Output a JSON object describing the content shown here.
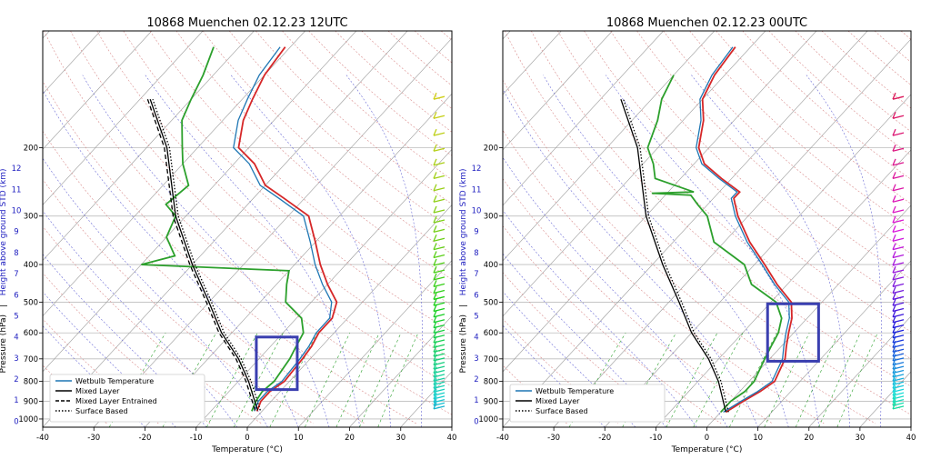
{
  "chart_data": [
    {
      "type": "line",
      "title": "10868 Muenchen 02.12.23 12UTC",
      "xlabel": "Temperature (°C)",
      "ylabel": "Pressure (hPa)",
      "ylabel2": "Height above ground STD (km)",
      "ylabel_sep": "|",
      "x_ticks": [
        -40,
        -30,
        -20,
        -10,
        0,
        10,
        20,
        30,
        40
      ],
      "p_ticks": [
        200,
        300,
        400,
        500,
        600,
        700,
        800,
        900,
        1000
      ],
      "km_ticks": [
        0,
        1,
        2,
        3,
        4,
        5,
        6,
        7,
        8,
        9,
        10,
        11,
        12
      ],
      "xlim": [
        -40,
        40
      ],
      "ylim": [
        1050,
        100
      ],
      "skew": true,
      "legend": [
        "Wetbulb Temperature",
        "Mixed Layer",
        "Mixed Layer Entrained",
        "Surface Based"
      ],
      "legend_position": "bottom-left",
      "highlight_box": {
        "t_min": -5,
        "t_max": 3,
        "p_top": 615,
        "p_bottom": 840
      },
      "series": [
        {
          "name": "Temperature",
          "color": "#d62728",
          "points": [
            [
              -1,
              955
            ],
            [
              -2,
              900
            ],
            [
              -2,
              850
            ],
            [
              -1,
              800
            ],
            [
              -1.5,
              700
            ],
            [
              -2,
              650
            ],
            [
              -3,
              600
            ],
            [
              -3,
              550
            ],
            [
              -5,
              500
            ],
            [
              -10,
              450
            ],
            [
              -15,
              400
            ],
            [
              -20,
              350
            ],
            [
              -26,
              300
            ],
            [
              -34,
              270
            ],
            [
              -40,
              250
            ],
            [
              -46,
              220
            ],
            [
              -52,
              200
            ],
            [
              -56,
              170
            ],
            [
              -58,
              150
            ],
            [
              -60,
              130
            ],
            [
              -61,
              110
            ]
          ]
        },
        {
          "name": "Wetbulb Temperature",
          "color": "#1f77b4",
          "points": [
            [
              -1.5,
              955
            ],
            [
              -2.5,
              900
            ],
            [
              -2.5,
              850
            ],
            [
              -1.5,
              800
            ],
            [
              -2,
              700
            ],
            [
              -2.5,
              650
            ],
            [
              -3.5,
              600
            ],
            [
              -3.5,
              550
            ],
            [
              -6,
              500
            ],
            [
              -11,
              450
            ],
            [
              -16,
              400
            ],
            [
              -21,
              350
            ],
            [
              -27,
              300
            ],
            [
              -35,
              270
            ],
            [
              -41,
              250
            ],
            [
              -47,
              220
            ],
            [
              -53,
              200
            ],
            [
              -57,
              170
            ],
            [
              -59,
              150
            ],
            [
              -61,
              130
            ],
            [
              -62,
              110
            ]
          ]
        },
        {
          "name": "Dewpoint",
          "color": "#2ca02c",
          "points": [
            [
              -2,
              955
            ],
            [
              -3,
              900
            ],
            [
              -3.5,
              850
            ],
            [
              -3,
              800
            ],
            [
              -4,
              700
            ],
            [
              -5,
              650
            ],
            [
              -6,
              600
            ],
            [
              -9,
              550
            ],
            [
              -15,
              500
            ],
            [
              -18,
              450
            ],
            [
              -20,
              415
            ],
            [
              -50,
              400
            ],
            [
              -45,
              380
            ],
            [
              -50,
              340
            ],
            [
              -52,
              300
            ],
            [
              -56,
              280
            ],
            [
              -55,
              250
            ],
            [
              -60,
              220
            ],
            [
              -63,
              200
            ],
            [
              -68,
              170
            ],
            [
              -70,
              150
            ],
            [
              -72,
              130
            ],
            [
              -75,
              110
            ]
          ]
        },
        {
          "name": "Mixed Layer",
          "color": "#000000",
          "style": "solid",
          "points": [
            [
              -1,
              950
            ],
            [
              -8,
              800
            ],
            [
              -14,
              700
            ],
            [
              -22,
              600
            ],
            [
              -30,
              500
            ],
            [
              -40,
              400
            ],
            [
              -52,
              300
            ],
            [
              -66,
              200
            ],
            [
              -78,
              150
            ]
          ]
        },
        {
          "name": "Mixed Layer Entrained",
          "color": "#000000",
          "style": "dashed",
          "points": [
            [
              -1.5,
              950
            ],
            [
              -8.5,
              800
            ],
            [
              -14.5,
              700
            ],
            [
              -22.5,
              600
            ],
            [
              -30.5,
              500
            ],
            [
              -40.5,
              400
            ],
            [
              -52.5,
              300
            ],
            [
              -66.5,
              200
            ],
            [
              -78.5,
              150
            ]
          ]
        },
        {
          "name": "Surface Based",
          "color": "#000000",
          "style": "dotted",
          "points": [
            [
              -0.5,
              950
            ],
            [
              -7.5,
              800
            ],
            [
              -13.5,
              700
            ],
            [
              -21.5,
              600
            ],
            [
              -29.5,
              500
            ],
            [
              -39.5,
              400
            ],
            [
              -51.5,
              300
            ],
            [
              -65.5,
              200
            ],
            [
              -77.5,
              150
            ]
          ]
        }
      ]
    },
    {
      "type": "line",
      "title": "10868 Muenchen 02.12.23 00UTC",
      "xlabel": "Temperature (°C)",
      "ylabel": "Pressure (hPa)",
      "ylabel2": "Height above ground STD (km)",
      "ylabel_sep": "|",
      "x_ticks": [
        -40,
        -30,
        -20,
        -10,
        0,
        10,
        20,
        30,
        40
      ],
      "p_ticks": [
        200,
        300,
        400,
        500,
        600,
        700,
        800,
        900,
        1000
      ],
      "km_ticks": [
        0,
        1,
        2,
        3,
        4,
        5,
        6,
        7,
        8,
        9,
        10,
        11,
        12
      ],
      "xlim": [
        -40,
        40
      ],
      "ylim": [
        1050,
        100
      ],
      "skew": true,
      "legend": [
        "Wetbulb Temperature",
        "Mixed Layer",
        "Surface Based"
      ],
      "legend_position": "bottom-left",
      "highlight_box": {
        "t_min": 0,
        "t_max": 10,
        "p_top": 505,
        "p_bottom": 710
      },
      "series": [
        {
          "name": "Temperature",
          "color": "#d62728",
          "points": [
            [
              1,
              960
            ],
            [
              2.5,
              900
            ],
            [
              4,
              850
            ],
            [
              5,
              800
            ],
            [
              3,
              700
            ],
            [
              1,
              650
            ],
            [
              -1,
              600
            ],
            [
              -3,
              550
            ],
            [
              -6,
              500
            ],
            [
              -12,
              450
            ],
            [
              -18,
              400
            ],
            [
              -25,
              350
            ],
            [
              -32,
              300
            ],
            [
              -36,
              270
            ],
            [
              -36,
              260
            ],
            [
              -42,
              240
            ],
            [
              -48,
              220
            ],
            [
              -52,
              200
            ],
            [
              -56,
              170
            ],
            [
              -60,
              150
            ],
            [
              -62,
              130
            ],
            [
              -63,
              110
            ]
          ]
        },
        {
          "name": "Wetbulb Temperature",
          "color": "#1f77b4",
          "points": [
            [
              0.5,
              960
            ],
            [
              2,
              900
            ],
            [
              3.5,
              850
            ],
            [
              4.5,
              800
            ],
            [
              2.5,
              700
            ],
            [
              0.5,
              650
            ],
            [
              -1.5,
              600
            ],
            [
              -3.5,
              550
            ],
            [
              -6.5,
              500
            ],
            [
              -12.5,
              450
            ],
            [
              -18.5,
              400
            ],
            [
              -25.5,
              350
            ],
            [
              -32.5,
              300
            ],
            [
              -36.5,
              270
            ],
            [
              -36.5,
              260
            ],
            [
              -42.5,
              240
            ],
            [
              -48.5,
              220
            ],
            [
              -52.5,
              200
            ],
            [
              -56.5,
              170
            ],
            [
              -60.5,
              150
            ],
            [
              -62.5,
              130
            ],
            [
              -63.5,
              110
            ]
          ]
        },
        {
          "name": "Dewpoint",
          "color": "#2ca02c",
          "points": [
            [
              0,
              960
            ],
            [
              0,
              900
            ],
            [
              1,
              850
            ],
            [
              1,
              800
            ],
            [
              -1,
              700
            ],
            [
              -2,
              650
            ],
            [
              -3,
              600
            ],
            [
              -5,
              550
            ],
            [
              -9,
              500
            ],
            [
              -17,
              450
            ],
            [
              -22,
              400
            ],
            [
              -32,
              350
            ],
            [
              -38,
              300
            ],
            [
              -42,
              280
            ],
            [
              -45,
              265
            ],
            [
              -53,
              262
            ],
            [
              -45,
              260
            ],
            [
              -55,
              240
            ],
            [
              -58,
              220
            ],
            [
              -62,
              200
            ],
            [
              -65,
              170
            ],
            [
              -68,
              150
            ],
            [
              -70,
              130
            ]
          ]
        },
        {
          "name": "Mixed Layer",
          "color": "#000000",
          "style": "solid",
          "points": [
            [
              1,
              960
            ],
            [
              -6,
              800
            ],
            [
              -12,
              700
            ],
            [
              -20,
              600
            ],
            [
              -28,
              500
            ],
            [
              -38,
              400
            ],
            [
              -50,
              300
            ],
            [
              -64,
              200
            ],
            [
              -76,
              150
            ]
          ]
        },
        {
          "name": "Surface Based",
          "color": "#000000",
          "style": "dotted",
          "points": [
            [
              1.5,
              960
            ],
            [
              -5.5,
              800
            ],
            [
              -11.5,
              700
            ],
            [
              -19.5,
              600
            ],
            [
              -27.5,
              500
            ],
            [
              -37.5,
              400
            ],
            [
              -49.5,
              300
            ],
            [
              -63.5,
              200
            ],
            [
              -75.5,
              150
            ]
          ]
        }
      ]
    }
  ]
}
